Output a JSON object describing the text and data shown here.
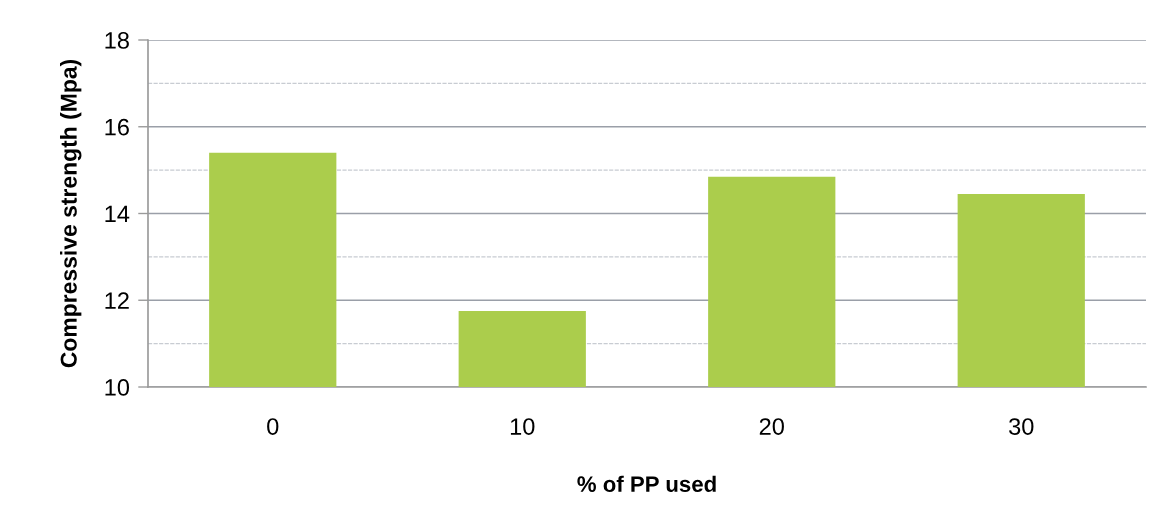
{
  "chart_data": {
    "type": "bar",
    "xlabel": "% of PP used",
    "ylabel": "Compressive strength (Mpa)",
    "categories": [
      "0",
      "10",
      "20",
      "30"
    ],
    "values": [
      15.4,
      11.75,
      14.85,
      14.45
    ],
    "color": "#abcd4c",
    "ylim": [
      10,
      18
    ],
    "yticks": [
      10,
      {
        "value": 11,
        "label": null
      },
      12,
      {
        "value": 13,
        "label": null
      },
      14,
      {
        "value": 15,
        "label": null
      },
      16,
      {
        "value": 17,
        "label": null
      },
      18
    ],
    "grid": "y"
  }
}
